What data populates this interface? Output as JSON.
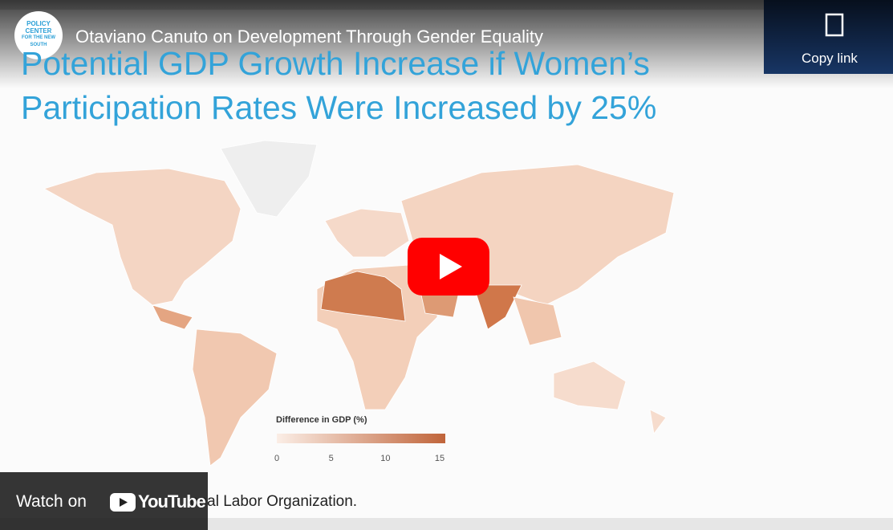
{
  "video": {
    "title": "Otaviano Canuto on Development Through Gender Equality",
    "copy_link": "Copy link",
    "channel_logo": [
      "POLICY",
      "CENTER",
      "FOR THE NEW",
      "SOUTH"
    ]
  },
  "slide": {
    "title_lines": [
      "Potential GDP Growth Increase if Women’s",
      "Participation Rates Were Increased by 25%"
    ],
    "legend": {
      "title": "Difference in GDP (%)",
      "ticks": [
        0,
        5,
        10,
        15
      ]
    },
    "footer": "onal Labor Organization."
  },
  "watch": {
    "label": "Watch on",
    "brand": "YouTube"
  }
}
